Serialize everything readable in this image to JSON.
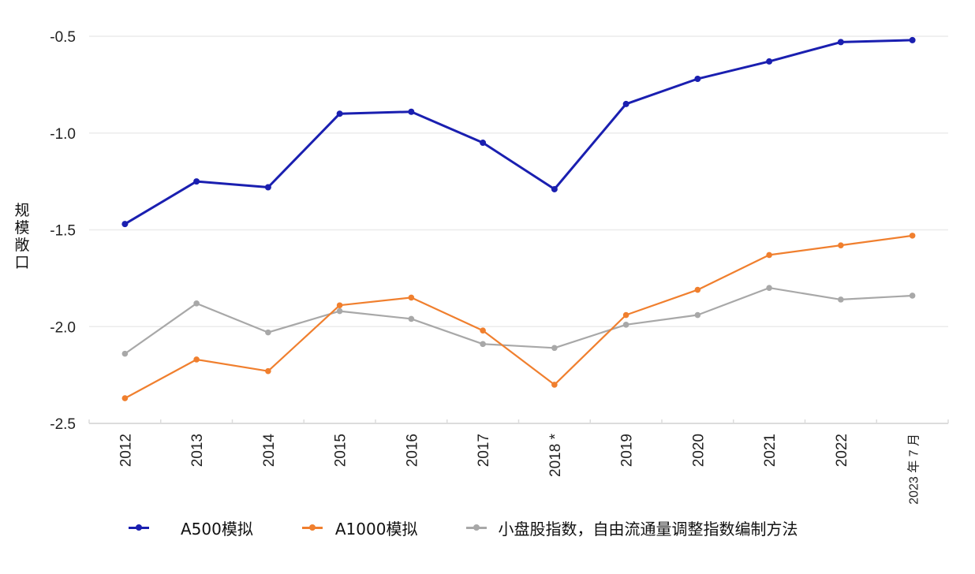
{
  "chart_data": {
    "type": "line",
    "title": "",
    "xlabel": "",
    "ylabel": "规模敞口",
    "ylim": [
      -2.5,
      -0.5
    ],
    "yticks": [
      -0.5,
      -1.0,
      -1.5,
      -2.0,
      -2.5
    ],
    "ytick_labels": [
      "-0.5",
      "-1.0",
      "-1.5",
      "-2.0",
      "-2.5"
    ],
    "grid": "horizontal",
    "legend_position": "bottom",
    "categories": [
      "2012",
      "2013",
      "2014",
      "2015",
      "2016",
      "2017",
      "2018 *",
      "2019",
      "2020",
      "2021",
      "2022",
      "2023 年 7 月"
    ],
    "series": [
      {
        "name": "A500模拟",
        "color": "#1a1fb0",
        "values": [
          -1.47,
          -1.25,
          -1.28,
          -0.9,
          -0.89,
          -1.05,
          -1.29,
          -0.85,
          -0.72,
          -0.63,
          -0.53,
          -0.52
        ]
      },
      {
        "name": "A1000模拟",
        "color": "#f07f2e",
        "values": [
          -2.37,
          -2.17,
          -2.23,
          -1.89,
          -1.85,
          -2.02,
          -2.3,
          -1.94,
          -1.81,
          -1.63,
          -1.58,
          -1.53
        ]
      },
      {
        "name": "小盘股指数，自由流通量调整指数编制方法",
        "color": "#a8a8a8",
        "values": [
          -2.14,
          -1.88,
          -2.03,
          -1.92,
          -1.96,
          -2.09,
          -2.11,
          -1.99,
          -1.94,
          -1.8,
          -1.86,
          -1.84
        ]
      }
    ]
  },
  "axis": {
    "y_label_chars": [
      "规",
      "模",
      "敞",
      "口"
    ]
  },
  "legend": {
    "items": [
      {
        "label": "A500模拟",
        "color": "#1a1fb0"
      },
      {
        "label": "A1000模拟",
        "color": "#f07f2e"
      },
      {
        "label": "小盘股指数，自由流通量调整指数编制方法",
        "color": "#a8a8a8"
      }
    ]
  }
}
